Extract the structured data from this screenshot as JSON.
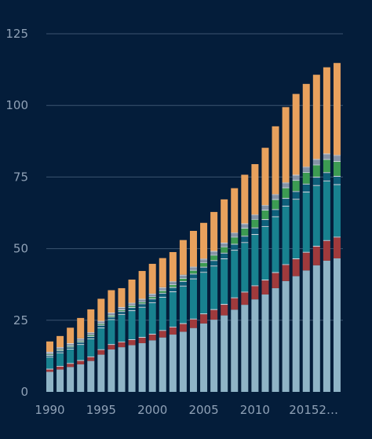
{
  "chart_data": {
    "type": "bar",
    "stacked": true,
    "grid": true,
    "legend": "none",
    "background": "#041d3a",
    "ylim": [
      0,
      125
    ],
    "y_ticks": [
      "0",
      "25",
      "50",
      "75",
      "100",
      "125"
    ],
    "x_tick_labels": [
      "1990",
      "1995",
      "2000",
      "2005",
      "2010",
      "20152…"
    ],
    "x_tick_categories": [
      "1990",
      "1995",
      "2000",
      "2005",
      "2010",
      "2015"
    ],
    "categories": [
      "1990",
      "1991",
      "1992",
      "1993",
      "1994",
      "1995",
      "1996",
      "1997",
      "1998",
      "1999",
      "2000",
      "2001",
      "2002",
      "2003",
      "2004",
      "2005",
      "2006",
      "2007",
      "2008",
      "2009",
      "2010",
      "2011",
      "2012",
      "2013",
      "2014",
      "2015",
      "2016",
      "2017",
      "2018"
    ],
    "series": [
      {
        "color": "#8fb4c6",
        "values": [
          7,
          7.8,
          8.7,
          9.6,
          10.8,
          13,
          14.8,
          15.6,
          16.3,
          17,
          18,
          19,
          20,
          21,
          22.3,
          23.9,
          25.2,
          26.7,
          28.7,
          30.4,
          32.3,
          34,
          36.2,
          38.7,
          40.4,
          42.4,
          44.2,
          45.8,
          46.6
        ]
      },
      {
        "color": "#a03a3c",
        "values": [
          0.8,
          1,
          1.1,
          1.2,
          1.3,
          1.6,
          1.6,
          1.7,
          1.8,
          1.9,
          2,
          2.3,
          2.5,
          2.7,
          3,
          3.2,
          3.4,
          3.7,
          4,
          4.3,
          4.6,
          4.9,
          5.3,
          5.6,
          5.9,
          6.2,
          6.5,
          6.9,
          7.3
        ]
      },
      {
        "color": "#d0d7df",
        "values": [
          0.3,
          0.3,
          0.3,
          0.3,
          0.3,
          0.3,
          0.3,
          0.3,
          0.3,
          0.3,
          0.3,
          0.3,
          0.3,
          0.3,
          0.3,
          0.3,
          0.3,
          0.3,
          0.3,
          0.3,
          0.3,
          0.3,
          0.3,
          0.3,
          0.3,
          0.3,
          0.3,
          0.3,
          0.3
        ]
      },
      {
        "color": "#18818f",
        "values": [
          3.9,
          4.4,
          4.7,
          5.3,
          6,
          7.3,
          8.4,
          9.3,
          9.8,
          10.2,
          10.7,
          11.3,
          12,
          12.8,
          13.7,
          14.2,
          14.9,
          15.6,
          16.3,
          17,
          17.6,
          18.4,
          19.2,
          20.1,
          20.5,
          20.7,
          20.9,
          20.5,
          18
        ]
      },
      {
        "color": "#d0d7df",
        "values": [
          0.3,
          0.3,
          0.3,
          0.3,
          0.3,
          0.3,
          0.3,
          0.3,
          0.3,
          0.3,
          0.3,
          0.3,
          0.3,
          0.3,
          0.3,
          0.3,
          0.3,
          0.3,
          0.3,
          0.3,
          0.3,
          0.3,
          0.3,
          0.3,
          0.3,
          0.3,
          0.3,
          0.3,
          0.3
        ]
      },
      {
        "color": "#0e5f7a",
        "values": [
          0.3,
          0.4,
          0.4,
          0.5,
          0.5,
          0.6,
          0.6,
          0.7,
          0.8,
          0.9,
          1,
          1.1,
          1.2,
          1.3,
          1.4,
          1.5,
          1.6,
          1.7,
          1.8,
          1.9,
          2,
          2.1,
          2.2,
          2.4,
          2.4,
          2.5,
          2.6,
          2.6,
          2.6
        ]
      },
      {
        "color": "#d0d7df",
        "values": [
          0.3,
          0.3,
          0.3,
          0.3,
          0.3,
          0.3,
          0.3,
          0.3,
          0.3,
          0.3,
          0.3,
          0.3,
          0.3,
          0.3,
          0.3,
          0.3,
          0.3,
          0.3,
          0.3,
          0.3,
          0.3,
          0.3,
          0.3,
          0.3,
          0.3,
          0.3,
          0.3,
          0.3,
          0.3
        ]
      },
      {
        "color": "#3c9b52",
        "values": [
          0.2,
          0.2,
          0.2,
          0.2,
          0.3,
          0.3,
          0.3,
          0.3,
          0.4,
          0.4,
          0.5,
          0.6,
          0.7,
          0.8,
          1,
          1.3,
          1.6,
          1.9,
          2.2,
          2.5,
          2.7,
          3,
          3.2,
          3.4,
          3.6,
          3.8,
          4,
          4.3,
          4.9
        ]
      },
      {
        "color": "#d0d7df",
        "values": [
          0.3,
          0.3,
          0.3,
          0.3,
          0.3,
          0.3,
          0.3,
          0.3,
          0.3,
          0.3,
          0.3,
          0.3,
          0.3,
          0.3,
          0.3,
          0.3,
          0.3,
          0.3,
          0.3,
          0.3,
          0.3,
          0.3,
          0.3,
          0.3,
          0.3,
          0.3,
          0.3,
          0.3,
          0.3
        ]
      },
      {
        "color": "#8593a6",
        "values": [
          0.3,
          0.3,
          0.4,
          0.4,
          0.4,
          0.5,
          0.5,
          0.5,
          0.5,
          0.6,
          0.6,
          0.7,
          0.7,
          0.8,
          0.8,
          0.9,
          1,
          1,
          1.1,
          1.2,
          1.2,
          1.3,
          1.4,
          1.4,
          1.5,
          1.5,
          1.6,
          1.6,
          1.8
        ]
      },
      {
        "color": "#d0d7df",
        "values": [
          0.3,
          0.3,
          0.3,
          0.3,
          0.3,
          0.3,
          0.3,
          0.3,
          0.3,
          0.3,
          0.3,
          0.3,
          0.3,
          0.3,
          0.3,
          0.3,
          0.3,
          0.3,
          0.3,
          0.3,
          0.3,
          0.3,
          0.3,
          0.3,
          0.3,
          0.3,
          0.3,
          0.3,
          0.3
        ]
      },
      {
        "color": "#e8a15d",
        "values": [
          3.6,
          3.9,
          5.4,
          7.1,
          8,
          7.7,
          7.8,
          6.6,
          8.1,
          9.7,
          10.4,
          10.2,
          10.2,
          12.1,
          12.5,
          12.5,
          13.6,
          15.1,
          15.5,
          17,
          17.6,
          20,
          23.7,
          26.3,
          28.2,
          28.9,
          29.4,
          30.1,
          32.1
        ]
      }
    ]
  }
}
